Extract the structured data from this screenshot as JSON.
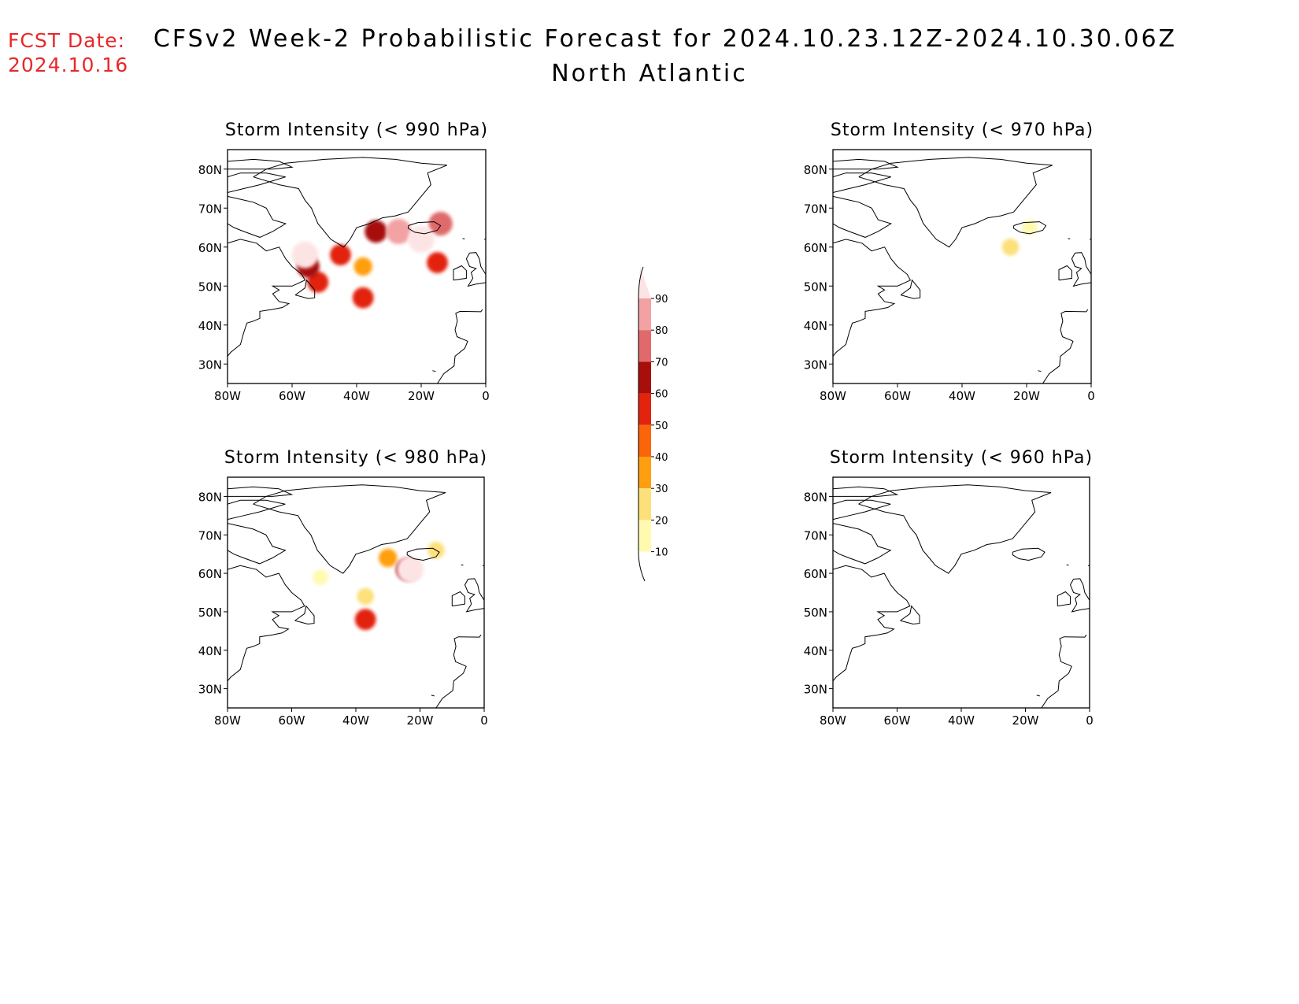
{
  "header": {
    "fcst_label": "FCST Date:",
    "fcst_date": "2024.10.16",
    "title": "CFSv2 Week-2 Probabilistic Forecast for 2024.10.23.12Z-2024.10.30.06Z",
    "subtitle": "North Atlantic"
  },
  "axes": {
    "lon_ticks": [
      "80W",
      "60W",
      "40W",
      "20W",
      "0"
    ],
    "lat_ticks": [
      "80N",
      "70N",
      "60N",
      "50N",
      "40N",
      "30N"
    ],
    "lon_range": [
      -80,
      0
    ],
    "lat_range": [
      25,
      85
    ]
  },
  "panels": [
    {
      "title": "Storm Intensity (< 990 hPa)",
      "blobs": [
        {
          "lon": -55,
          "lat": 55,
          "level": 60
        },
        {
          "lon": -56,
          "lat": 58,
          "level": 90
        },
        {
          "lon": -52,
          "lat": 51,
          "level": 50
        },
        {
          "lon": -45,
          "lat": 58,
          "level": 50
        },
        {
          "lon": -38,
          "lat": 55,
          "level": 30
        },
        {
          "lon": -38,
          "lat": 47,
          "level": 50
        },
        {
          "lon": -34,
          "lat": 64,
          "level": 60
        },
        {
          "lon": -27,
          "lat": 64,
          "level": 80
        },
        {
          "lon": -20,
          "lat": 62,
          "level": 90
        },
        {
          "lon": -14,
          "lat": 66,
          "level": 70
        },
        {
          "lon": -15,
          "lat": 56,
          "level": 50
        }
      ]
    },
    {
      "title": "Storm Intensity (< 970 hPa)",
      "blobs": [
        {
          "lon": -19,
          "lat": 65,
          "level": 10
        },
        {
          "lon": -25,
          "lat": 60,
          "level": 20
        }
      ]
    },
    {
      "title": "Storm Intensity (< 980 hPa)",
      "blobs": [
        {
          "lon": -51,
          "lat": 59,
          "level": 10
        },
        {
          "lon": -37,
          "lat": 54,
          "level": 20
        },
        {
          "lon": -37,
          "lat": 48,
          "level": 50
        },
        {
          "lon": -30,
          "lat": 64,
          "level": 30
        },
        {
          "lon": -24,
          "lat": 61,
          "level": 60
        },
        {
          "lon": -23,
          "lat": 61,
          "level": 90
        },
        {
          "lon": -15,
          "lat": 66,
          "level": 20
        }
      ]
    },
    {
      "title": "Storm Intensity (< 960 hPa)",
      "blobs": []
    }
  ],
  "colorbar": {
    "labels": [
      "90",
      "80",
      "70",
      "60",
      "50",
      "40",
      "30",
      "20",
      "10"
    ],
    "colors": [
      "#fde4e4",
      "#f2a2a3",
      "#e06a6b",
      "#a80f0a",
      "#e2230e",
      "#fb6509",
      "#ff9f10",
      "#fde07a",
      "#fffab0"
    ]
  },
  "levels": {
    "10": "#fffab0",
    "20": "#fde07a",
    "30": "#ff9f10",
    "40": "#fb6509",
    "50": "#e2230e",
    "60": "#a80f0a",
    "70": "#e06a6b",
    "80": "#f2a2a3",
    "90": "#fde4e4"
  }
}
